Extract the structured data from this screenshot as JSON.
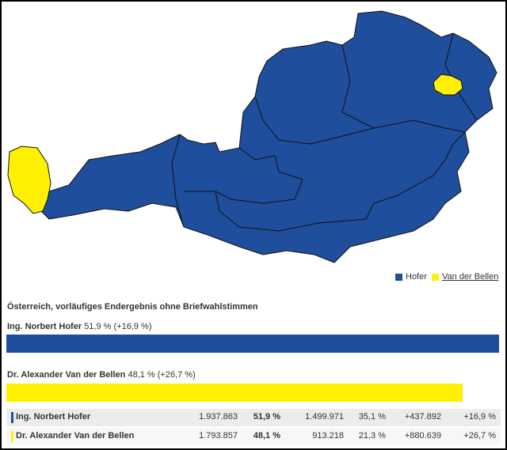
{
  "legend": [
    "Hofer",
    "Van der Bellen"
  ],
  "results": {
    "title": "Österreich, vorläufiges Endergebnis ohne Briefwahlstimmen",
    "candidates": [
      {
        "name": "Ing. Norbert Hofer",
        "summary": "51,9 % (+16,9 %)",
        "percent": 51.9,
        "color": "#1f4e9c",
        "row": [
          "1.937.863",
          "51,9 %",
          "1.499.971",
          "35,1 %",
          "+437.892",
          "+16,9 %"
        ]
      },
      {
        "name": "Dr. Alexander Van der Bellen",
        "summary": "48,1 % (+26,7 %)",
        "percent": 48.1,
        "color": "#ffef00",
        "row": [
          "1.793.857",
          "48,1 %",
          "913.218",
          "21,3 %",
          "+880.639",
          "+26,7 %"
        ]
      }
    ]
  }
}
